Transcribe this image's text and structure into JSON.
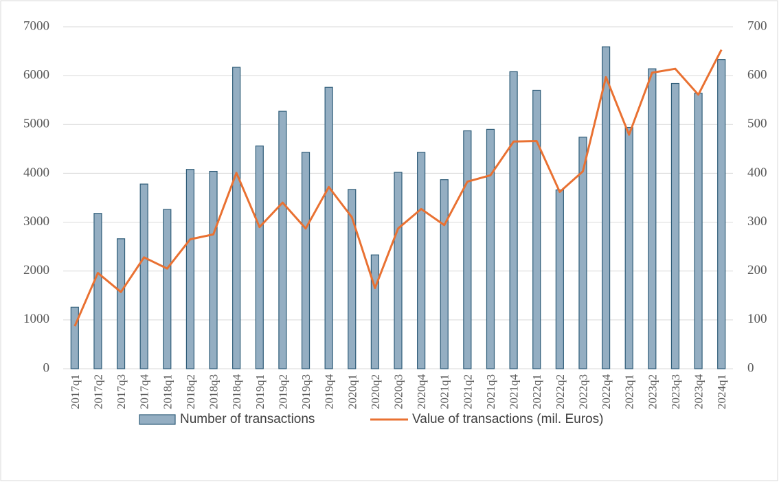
{
  "chart_data": {
    "type": "bar-line",
    "categories": [
      "2017q1",
      "2017q2",
      "2017q3",
      "2017q4",
      "2018q1",
      "2018q2",
      "2018q3",
      "2018q4",
      "2019q1",
      "2019q2",
      "2019q3",
      "2019q4",
      "2020q1",
      "2020q2",
      "2020q3",
      "2020q4",
      "2021q1",
      "2021q2",
      "2021q3",
      "2021q4",
      "2022q1",
      "2022q2",
      "2022q3",
      "2022q4",
      "2023q1",
      "2023q2",
      "2023q3",
      "2023q4",
      "2024q1"
    ],
    "series": [
      {
        "name": "Number of transactions",
        "type": "bar",
        "color": "#94aec2",
        "axis": "y",
        "values": [
          1260,
          3180,
          2660,
          3780,
          3260,
          4080,
          4040,
          6170,
          4560,
          5270,
          4430,
          5760,
          3670,
          2330,
          4020,
          4430,
          3870,
          4870,
          4900,
          6080,
          5700,
          3660,
          4740,
          6590,
          4940,
          6140,
          5840,
          5640,
          6330
        ]
      },
      {
        "name": "Value of transactions (mil. Euros)",
        "type": "line",
        "color": "#e97132",
        "axis": "y2",
        "values": [
          87,
          196,
          157,
          228,
          205,
          265,
          275,
          401,
          290,
          340,
          287,
          372,
          310,
          165,
          287,
          327,
          294,
          383,
          396,
          465,
          466,
          362,
          404,
          597,
          479,
          606,
          614,
          561,
          653
        ]
      }
    ],
    "ylim": [
      0,
      7000
    ],
    "yticks": [
      0,
      1000,
      2000,
      3000,
      4000,
      5000,
      6000,
      7000
    ],
    "y2lim": [
      0,
      700
    ],
    "y2ticks": [
      0,
      100,
      200,
      300,
      400,
      500,
      600,
      700
    ],
    "grid": true,
    "legend": "bottom"
  }
}
